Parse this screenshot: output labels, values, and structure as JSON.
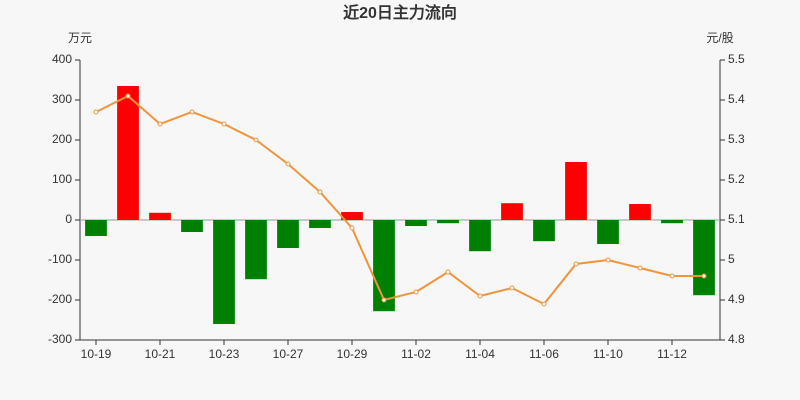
{
  "chart_data": {
    "type": "bar-line",
    "title": "近20日主力流向",
    "y_label": "万元",
    "y2_label": "元/股",
    "categories": [
      "10-19",
      null,
      "10-21",
      null,
      "10-23",
      null,
      "10-27",
      null,
      "10-29",
      null,
      "11-02",
      null,
      "11-04",
      null,
      "11-06",
      null,
      "11-10",
      null,
      "11-12",
      null
    ],
    "series": [
      {
        "type": "bar",
        "positive_color": "#ff0000",
        "negative_color": "#008000",
        "values": [
          -40,
          335,
          18,
          -30,
          -260,
          -148,
          -70,
          -20,
          20,
          -228,
          -15,
          -8,
          -78,
          42,
          -53,
          145,
          -60,
          40,
          -8,
          -188
        ]
      },
      {
        "type": "line",
        "axis": "y2",
        "color": "#f0943c",
        "values": [
          5.37,
          5.41,
          5.34,
          5.37,
          5.34,
          5.3,
          5.24,
          5.17,
          5.08,
          4.9,
          4.92,
          4.97,
          4.91,
          4.93,
          4.89,
          4.99,
          5.0,
          4.98,
          4.96,
          4.96
        ]
      }
    ],
    "ylim": [
      -300,
      400
    ],
    "yticks": [
      -300,
      -200,
      -100,
      0,
      100,
      200,
      300,
      400
    ],
    "y2lim": [
      4.8,
      5.5
    ],
    "y2ticks": [
      4.8,
      4.9,
      5,
      5.1,
      5.2,
      5.3,
      5.4,
      5.5
    ]
  }
}
